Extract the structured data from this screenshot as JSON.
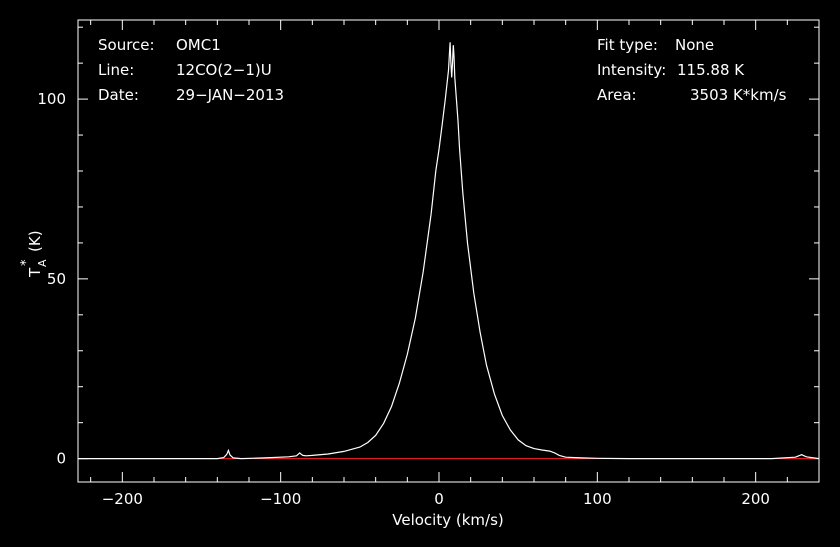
{
  "chart_data": {
    "type": "line",
    "xlabel": "Velocity (km/s)",
    "ylabel": "T",
    "ylabel_sup": "*",
    "ylabel_sub": "A",
    "ylabel_unit": "(K)",
    "xlim": [
      -228,
      240
    ],
    "ylim": [
      -6.5,
      122
    ],
    "x_major_ticks": [
      -200,
      -100,
      0,
      100,
      200
    ],
    "x_tick_labels": [
      "−200",
      "−100",
      "0",
      "100",
      "200"
    ],
    "y_major_ticks": [
      0,
      50,
      100
    ],
    "y_tick_labels": [
      "0",
      "50",
      "100"
    ],
    "grid": false,
    "colors": {
      "background": "#000000",
      "axes": "#ffffff",
      "spectrum": "#ffffff",
      "baseline": "#ff2020"
    },
    "series": [
      {
        "x": [
          -228,
          -200,
          -160,
          -140,
          -136,
          -134,
          -133,
          -132,
          -130,
          -125,
          -110,
          -95,
          -90,
          -88,
          -87,
          -86,
          -84,
          -80,
          -70,
          -60,
          -50,
          -45,
          -40,
          -35,
          -30,
          -25,
          -20,
          -15,
          -10,
          -5,
          -2,
          0,
          2,
          4,
          5,
          6,
          6.5,
          7,
          7.5,
          8,
          8.5,
          9,
          9.5,
          10,
          10.5,
          11,
          12,
          13,
          15,
          18,
          22,
          26,
          30,
          35,
          40,
          45,
          50,
          55,
          60,
          65,
          70,
          73,
          76,
          80,
          90,
          100,
          120,
          150,
          180,
          210,
          225,
          229,
          232,
          240
        ],
        "y": [
          0,
          0,
          0,
          0,
          0.3,
          1.2,
          2.3,
          1.0,
          0.2,
          0,
          0.2,
          0.5,
          0.8,
          1.6,
          1.2,
          0.9,
          0.8,
          0.9,
          1.3,
          2.0,
          3.2,
          4.5,
          6.5,
          9.8,
          14.5,
          21,
          29,
          39,
          52,
          68,
          80,
          86,
          93,
          100,
          104,
          108,
          112,
          115.8,
          110,
          106,
          110,
          115,
          112,
          106,
          103,
          100,
          94,
          86,
          74,
          60,
          46,
          35,
          26,
          18,
          12,
          8,
          5.2,
          3.6,
          2.8,
          2.4,
          2.1,
          1.6,
          0.9,
          0.4,
          0.2,
          0.1,
          0,
          0,
          0,
          0,
          0.4,
          1.1,
          0.5,
          0
        ]
      }
    ]
  },
  "info_left": [
    {
      "label": "Source:",
      "value": "OMC1"
    },
    {
      "label": "Line:",
      "value": "12CO(2−1)U"
    },
    {
      "label": "Date:",
      "value": "29−JAN−2013"
    }
  ],
  "info_right": [
    {
      "label": "Fit type:",
      "value": "None"
    },
    {
      "label": "Intensity:",
      "value": "115.88 K"
    },
    {
      "label": "Area:",
      "value": "3503 K*km/s"
    }
  ]
}
